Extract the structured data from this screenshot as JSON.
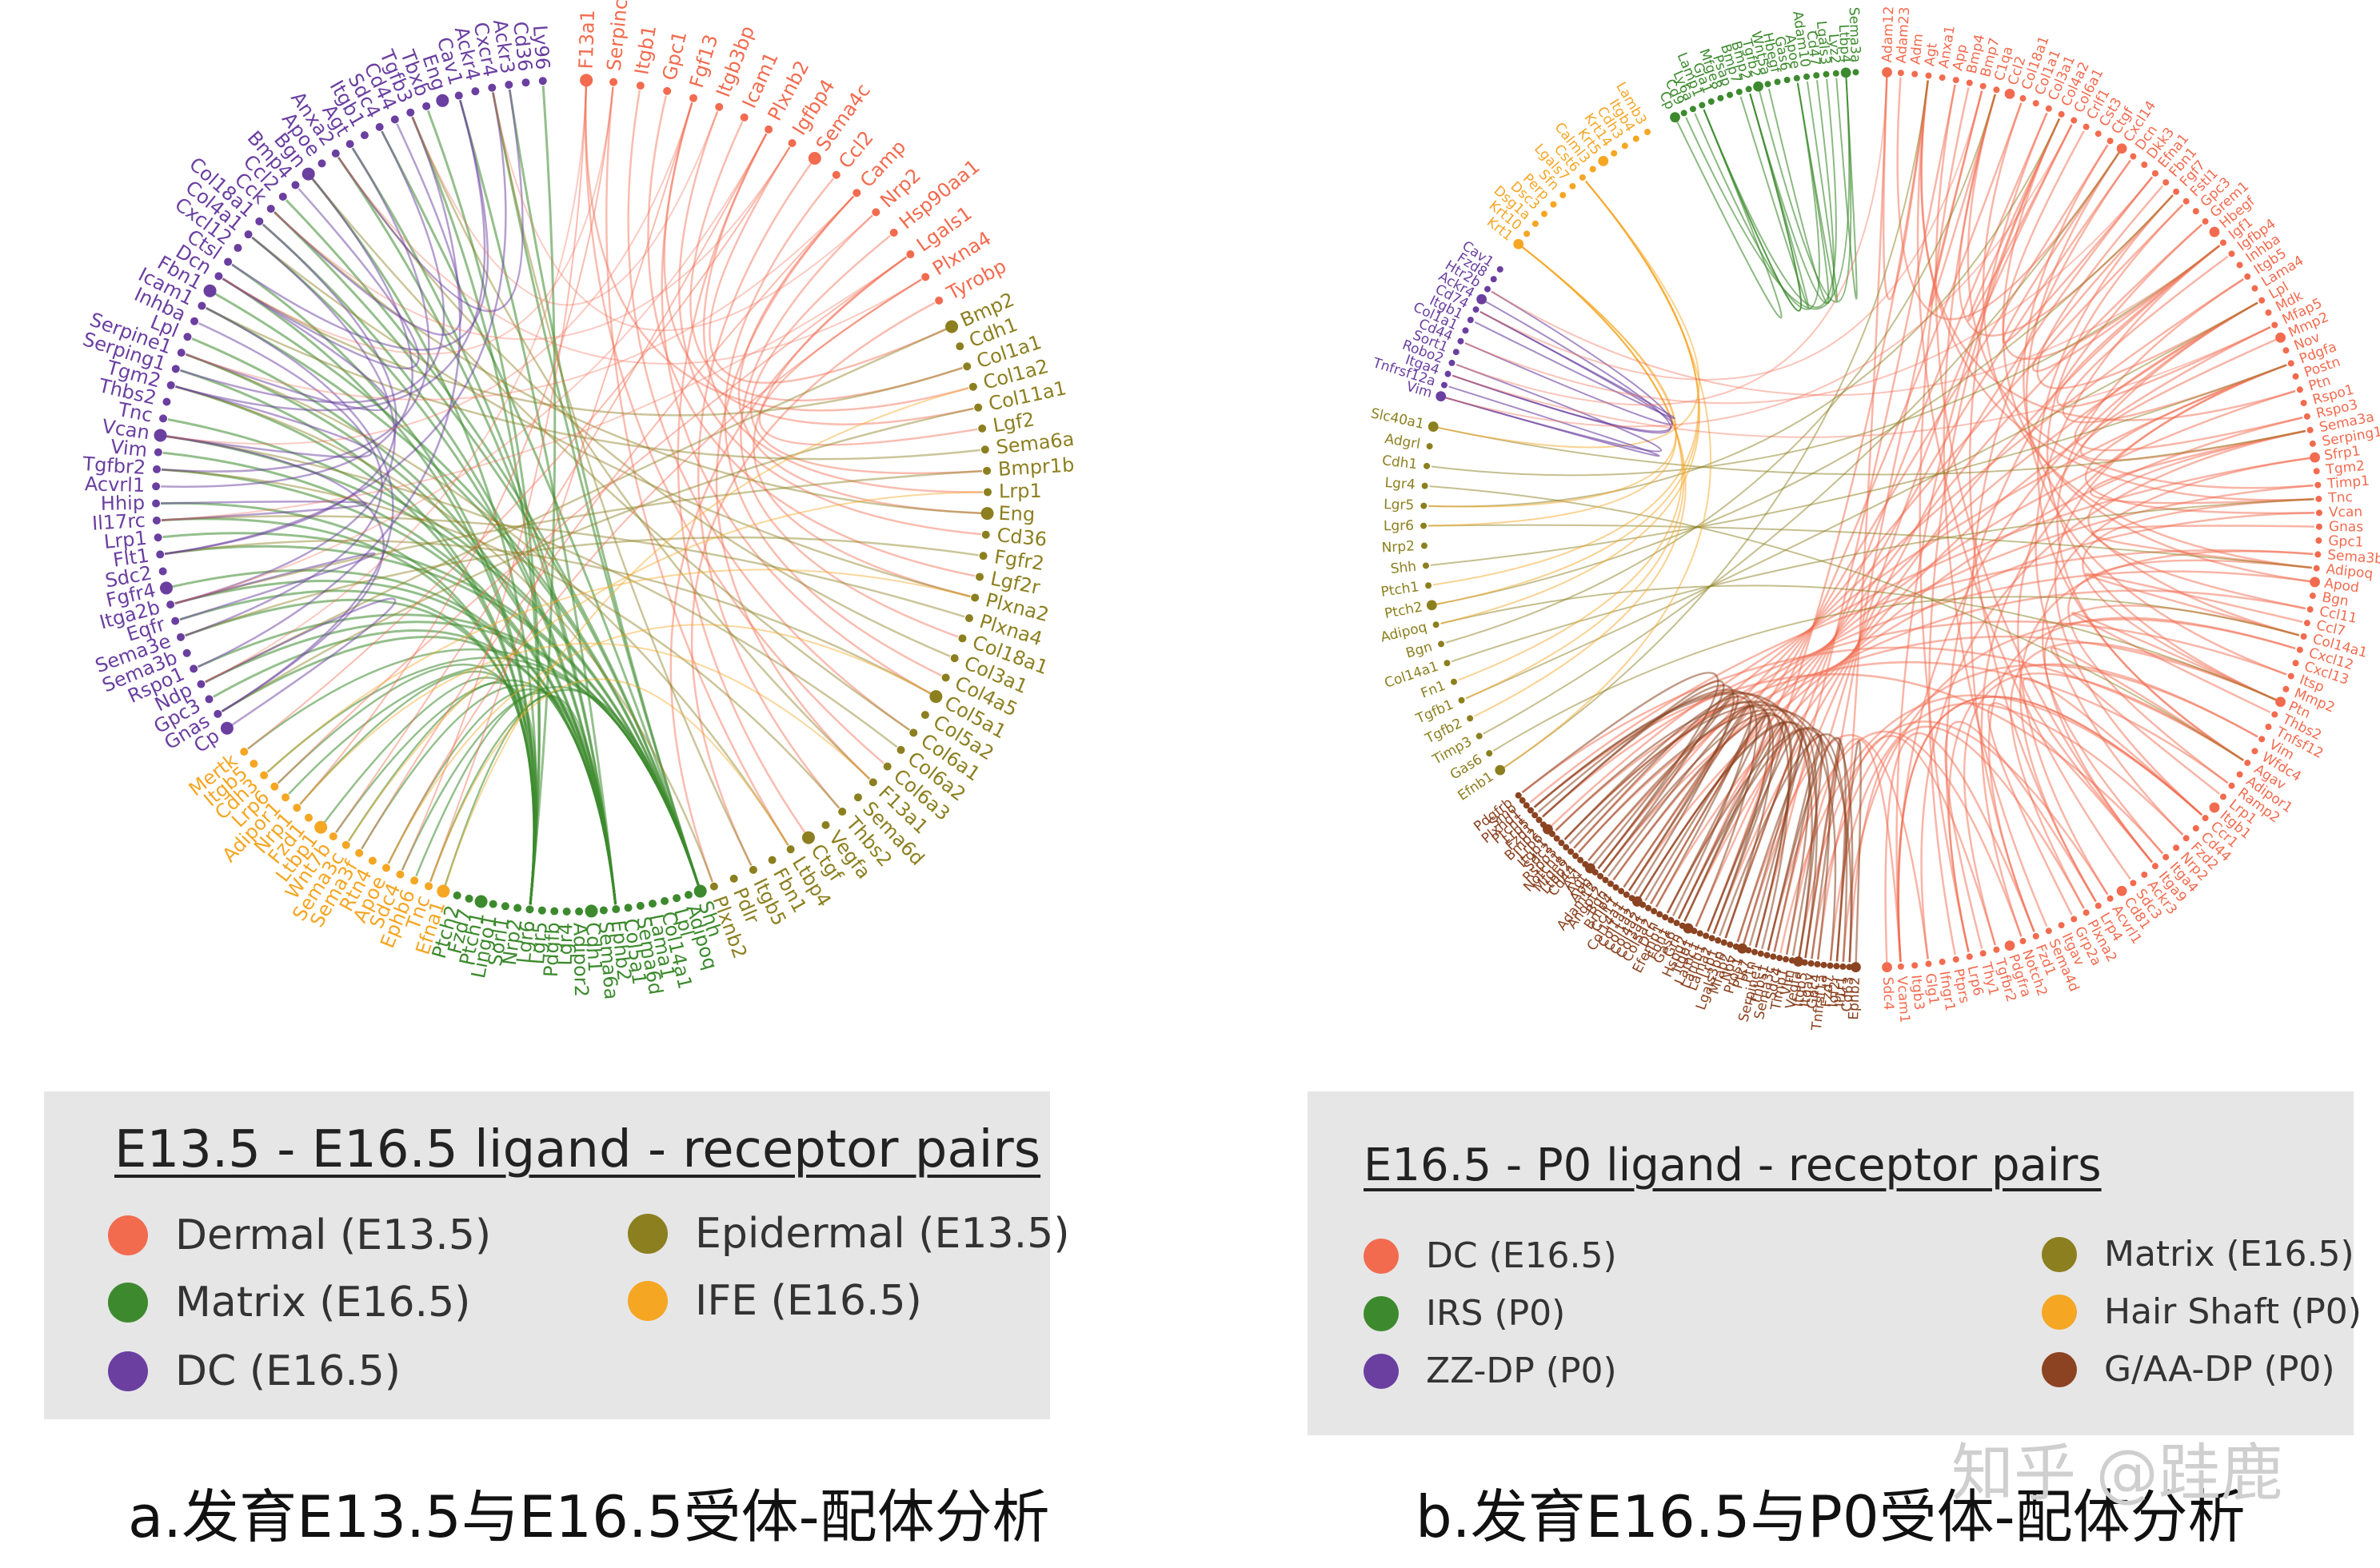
{
  "panels": [
    {
      "id": "a",
      "legend_title": "E13.5 - E16.5 ligand - receptor pairs",
      "caption": "a.发育E13.5与E16.5受体-配体分析",
      "groups": [
        {
          "name": "Dermal (E13.5)",
          "color": "#f26b4f",
          "genes": [
            "F13a1",
            "Serpinc1",
            "Itgb1",
            "Gpc1",
            "Fgf13",
            "Itgb3bp",
            "Icam1",
            "Plxnb2",
            "Igfbp4",
            "Sema4c",
            "Ccl2",
            "Camp",
            "Nrp2",
            "Hsp90aa1",
            "Lgals1",
            "Plxna4",
            "Tyrobp"
          ]
        },
        {
          "name": "Epidermal (E13.5)",
          "color": "#8c7f1f",
          "genes": [
            "Bmp2",
            "Cdh1",
            "Col1a1",
            "Col1a2",
            "Col11a1",
            "Lgf2",
            "Sema6a",
            "Bmpr1b",
            "Lrp1",
            "Eng",
            "Cd36",
            "Fgfr2",
            "Lgf2r",
            "Plxna2",
            "Plxna4",
            "Col18a1",
            "Col3a1",
            "Col4a5",
            "Col5a1",
            "Col5a2",
            "Col6a1",
            "Col6a2",
            "Col6a3",
            "F13a1",
            "Sema6d",
            "Thbs2",
            "Vegfa",
            "Ctgf",
            "Ltbp4",
            "Fbn1",
            "Itgb5",
            "Pdlr",
            "Plxnb2"
          ]
        },
        {
          "name": "Matrix (E16.5)",
          "color": "#3d8a2e",
          "genes": [
            "Shh",
            "Adipoq",
            "Lpl",
            "Col14a1",
            "Lama1",
            "Sema6d",
            "Col5a1",
            "Ephb2",
            "Sema6a",
            "Cdh1",
            "Adipor2",
            "Lgr4",
            "Pdgfb",
            "Lgr5",
            "Lgr6",
            "Nrp2",
            "Sorl1",
            "Lingo1",
            "Ptch1",
            "Fzd7",
            "Ptch2"
          ]
        },
        {
          "name": "IFE (E16.5)",
          "color": "#f5a623",
          "genes": [
            "Efna1",
            "Tnc",
            "Ephb6",
            "Sdc4",
            "Apoe",
            "Rtn4",
            "Sema3f",
            "Sema3c",
            "Wnt7b",
            "Ltbp1",
            "Fzd1",
            "Nrp1",
            "Adipor1",
            "Lrp6",
            "Cdh3",
            "Itgb5",
            "Mertk"
          ]
        },
        {
          "name": "DC (E16.5)",
          "color": "#6a3fa0",
          "genes": [
            "Cp",
            "Gnas",
            "Gpc3",
            "Ndp",
            "Rspo1",
            "Sema3b",
            "Sema3e",
            "Eqfr",
            "Itga2b",
            "Fgfr4",
            "Sdc2",
            "Flt1",
            "Lrp1",
            "Il17rc",
            "Hhip",
            "Acvrl1",
            "Tgfbr2",
            "Vim",
            "Vcan",
            "Tnc",
            "Thbs2",
            "Tgm2",
            "Serping1",
            "Serpine1",
            "Lpl",
            "Inhba",
            "Icam1",
            "Fbn1",
            "Dcn",
            "Ctsl",
            "Cxcl12",
            "Col4a1",
            "Col18a1",
            "Cck",
            "Ccl2",
            "Bmp4",
            "Bgn",
            "Apoe",
            "Anxa2",
            "Agt",
            "Itgb1",
            "Sdc4",
            "Cd44",
            "Tgfb3",
            "Tbxb",
            "Eng",
            "Cav1",
            "Ackr4",
            "Cxcr4",
            "Ackr3",
            "Cd36",
            "Ly96"
          ]
        }
      ]
    },
    {
      "id": "b",
      "legend_title": "E16.5 - P0 ligand - receptor pairs",
      "caption": "b.发育E16.5与P0受体-配体分析",
      "groups": [
        {
          "name": "DC (E16.5)",
          "color": "#f26b4f",
          "genes": [
            "Adam12",
            "Adam23",
            "Adm",
            "Agt",
            "Anxa1",
            "App",
            "Bmp4",
            "Bmp7",
            "C1qa",
            "Ccl2",
            "Col18a1",
            "Col1a1",
            "Col3a1",
            "Col4a2",
            "Col6a1",
            "Crlf1",
            "Cst3",
            "Ctgf",
            "Cxcl14",
            "Dcn",
            "Dkk3",
            "Efna1",
            "Fbn1",
            "Fgf7",
            "Fstl1",
            "Gpc3",
            "Grem1",
            "Hbegf",
            "Igf1",
            "Igfbp4",
            "Inhba",
            "Itgb5",
            "Lama4",
            "Lpl",
            "Mdk",
            "Mfap5",
            "Mmp2",
            "Nov",
            "Pdgfa",
            "Postn",
            "Ptn",
            "Rspo1",
            "Rspo3",
            "Sema3a",
            "Serping1",
            "Sfrp1",
            "Tgm2",
            "Timp1",
            "Tnc",
            "Vcan",
            "Gnas",
            "Gpc1",
            "Sema3b",
            "Adipoq",
            "Apod",
            "Bgn",
            "Ccl11",
            "Ccl7",
            "Col14a1",
            "Cxcl12",
            "Cxcl13",
            "Itsp",
            "Mmp2",
            "Ptn",
            "Thbs2",
            "Tnfsf12",
            "Vim",
            "Wfdc4",
            "Agav",
            "Adipor1",
            "Ramp2",
            "Lrp1",
            "Itgb1",
            "Ccr1",
            "Cd44",
            "Fzd2",
            "Nrp2",
            "Itga4",
            "Itga9",
            "Ackr3",
            "Sdc3",
            "Cd81",
            "Acvrl1",
            "Lrp4",
            "Plxna2",
            "Grp2a",
            "Itgav",
            "Sema4d",
            "Fzd1",
            "Notch2",
            "Pdgfra",
            "Tgfbr2",
            "Thy1",
            "Lrp6",
            "Ptprs",
            "Ifngr1",
            "Glg1",
            "Itgb3",
            "Vcam1",
            "Sdc4"
          ]
        },
        {
          "name": "Matrix (E16.5)",
          "color": "#8c7f1f",
          "genes": [
            "Efnb1",
            "Gas6",
            "Timp3",
            "Tgfb2",
            "Tgfb1",
            "Fn1",
            "Col14a1",
            "Bgn",
            "Adipoq",
            "Ptch2",
            "Ptch1",
            "Shh",
            "Nrp2",
            "Lgr6",
            "Lgr5",
            "Lgr4",
            "Cdh1",
            "Adgrl",
            "Slc40a1"
          ]
        },
        {
          "name": "IRS (P0)",
          "color": "#3d8a2e",
          "genes": [
            "Cp",
            "Cd9",
            "Ly6a",
            "Lamp1",
            "Gja1",
            "Mfge8",
            "Psap",
            "Bmp7",
            "Bmp2",
            "Tgfb2",
            "Wnt5a",
            "Hbegf",
            "Gas6",
            "Apoe",
            "Adam10",
            "Cd47",
            "Lgals3",
            "Lyz2",
            "Ltbp4",
            "Sema3a"
          ]
        },
        {
          "name": "Hair Shaft (P0)",
          "color": "#f5a623",
          "genes": [
            "Krt1",
            "Krt10",
            "Dsg1a",
            "Dsc3",
            "Perp",
            "Sfn",
            "Lgals7",
            "Cst6",
            "Calml3",
            "Krt5",
            "Krt14",
            "Cdh3",
            "Itgb4",
            "Lamb3"
          ]
        },
        {
          "name": "ZZ-DP (P0)",
          "color": "#6a3fa0",
          "genes": [
            "Vim",
            "Tnfrsf12a",
            "Itga4",
            "Robo2",
            "Sort1",
            "Cd44",
            "Col1a1",
            "Itgb1",
            "Cd74",
            "Ackr4",
            "Htr2b",
            "Fzd8",
            "Cav1"
          ]
        },
        {
          "name": "G/AA-DP (P0)",
          "color": "#8b4321",
          "genes": [
            "Ephb2",
            "Cd63",
            "Il1r1",
            "Igf2r",
            "Fzd7",
            "Tnfrsf1a",
            "Gpc4",
            "Itgav",
            "Itgb5",
            "Vegfa",
            "Vim",
            "Timp1",
            "Sdc4",
            "Sema3c",
            "Thbs1",
            "Serpine1",
            "Ptn",
            "Ptk7",
            "Pros1",
            "Nov",
            "Mfap2",
            "Lgals3bp",
            "Lrp1",
            "Lama2",
            "Lamb1",
            "Lamc1",
            "Itgb1",
            "Hspg2",
            "Grn",
            "Gas6",
            "Fbn1",
            "Efemp1",
            "Dcn",
            "Col5a2",
            "Col3a1",
            "Col4a2",
            "Col1a2",
            "Col1a1",
            "Col14a1",
            "Ccl11",
            "Bmp4",
            "Bgn",
            "Angpt2",
            "Adam12",
            "App",
            "Agt",
            "Axl",
            "Cd44",
            "Ltbp2",
            "Mfge8",
            "Notch1",
            "Rspo3",
            "Sdc2",
            "Itgb1",
            "Lrp6",
            "Bmp2",
            "Fzd1",
            "Lrp5",
            "Ptch1",
            "Plxnd1",
            "Smo",
            "Pdgfrb"
          ]
        }
      ]
    }
  ],
  "watermark": "知乎 @跬鹿"
}
